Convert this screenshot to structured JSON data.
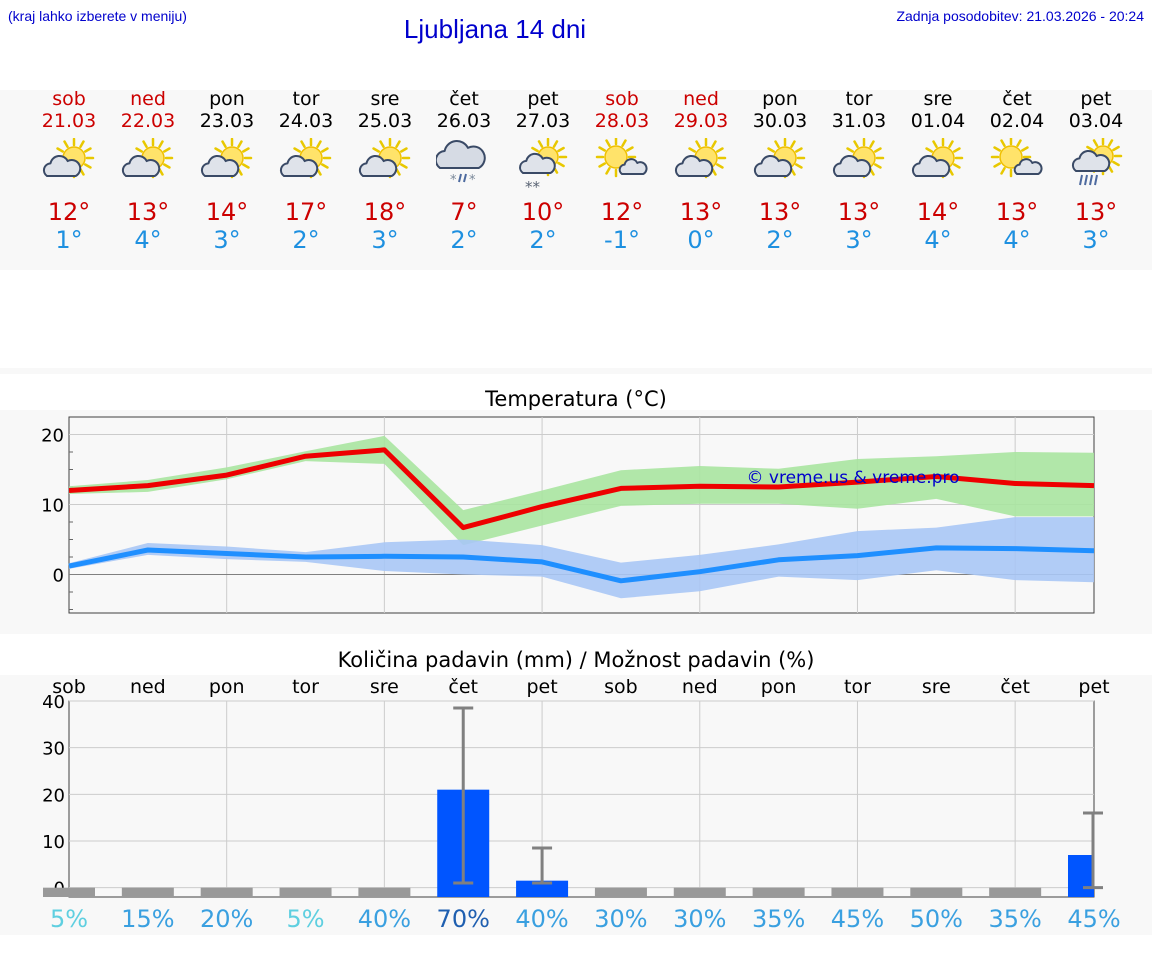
{
  "header": {
    "hint": "(kraj lahko izberete v meniju)",
    "title": "Ljubljana 14 dni",
    "updated": "Zadnja posodobitev: 21.03.2026 - 20:24"
  },
  "days": [
    {
      "name": "sob",
      "date": "21.03",
      "weekend": true,
      "icon": "partly-cloudy-icon",
      "tmax": "12°",
      "tmin": "1°"
    },
    {
      "name": "ned",
      "date": "22.03",
      "weekend": true,
      "icon": "partly-cloudy-icon",
      "tmax": "13°",
      "tmin": "4°"
    },
    {
      "name": "pon",
      "date": "23.03",
      "weekend": false,
      "icon": "partly-cloudy-icon",
      "tmax": "14°",
      "tmin": "3°"
    },
    {
      "name": "tor",
      "date": "24.03",
      "weekend": false,
      "icon": "partly-cloudy-icon",
      "tmax": "17°",
      "tmin": "2°"
    },
    {
      "name": "sre",
      "date": "25.03",
      "weekend": false,
      "icon": "partly-cloudy-icon",
      "tmax": "18°",
      "tmin": "3°"
    },
    {
      "name": "čet",
      "date": "26.03",
      "weekend": false,
      "icon": "cloud-sleet-icon",
      "tmax": "7°",
      "tmin": "2°"
    },
    {
      "name": "pet",
      "date": "27.03",
      "weekend": false,
      "icon": "sun-cloud-snow-icon",
      "tmax": "10°",
      "tmin": "2°"
    },
    {
      "name": "sob",
      "date": "28.03",
      "weekend": true,
      "icon": "mostly-sunny-icon",
      "tmax": "12°",
      "tmin": "-1°"
    },
    {
      "name": "ned",
      "date": "29.03",
      "weekend": true,
      "icon": "partly-cloudy-icon",
      "tmax": "13°",
      "tmin": "0°"
    },
    {
      "name": "pon",
      "date": "30.03",
      "weekend": false,
      "icon": "partly-cloudy-icon",
      "tmax": "13°",
      "tmin": "2°"
    },
    {
      "name": "tor",
      "date": "31.03",
      "weekend": false,
      "icon": "partly-cloudy-icon",
      "tmax": "13°",
      "tmin": "3°"
    },
    {
      "name": "sre",
      "date": "01.04",
      "weekend": false,
      "icon": "partly-cloudy-icon",
      "tmax": "14°",
      "tmin": "4°"
    },
    {
      "name": "čet",
      "date": "02.04",
      "weekend": false,
      "icon": "mostly-sunny-icon",
      "tmax": "13°",
      "tmin": "4°"
    },
    {
      "name": "pet",
      "date": "03.04",
      "weekend": false,
      "icon": "sun-cloud-rain-icon",
      "tmax": "13°",
      "tmin": "3°"
    }
  ],
  "colors": {
    "max": "#cc0000",
    "min": "#1e90e0",
    "line_max": "#ee0000",
    "line_min": "#1f8fff",
    "band_max": "#a8e4a0",
    "band_min": "#a9c6f5",
    "bar": "#0055ff",
    "whisker": "#808080"
  },
  "chart_data": [
    {
      "type": "line",
      "title": "Temperatura (°C)",
      "watermark": "© vreme.us & vreme.pro",
      "ylim": [
        -5.5,
        22.5
      ],
      "yticks": [
        0,
        10,
        20
      ],
      "grid": true,
      "series": [
        {
          "values": [
            12,
            12.7,
            14.2,
            16.9,
            17.8,
            6.7,
            9.7,
            12.3,
            12.6,
            12.5,
            13.2,
            14.0,
            13.0,
            12.7
          ],
          "band_low": [
            11.5,
            11.8,
            13.6,
            16.2,
            15.8,
            4.2,
            7.0,
            9.8,
            10.1,
            10.1,
            9.4,
            10.8,
            8.3,
            8.3
          ],
          "band_high": [
            12.6,
            13.5,
            15.3,
            17.6,
            19.8,
            9.2,
            12.0,
            14.9,
            15.5,
            15.1,
            16.5,
            16.9,
            17.5,
            17.4
          ]
        },
        {
          "values": [
            1.2,
            3.5,
            3.0,
            2.5,
            2.6,
            2.5,
            1.8,
            -0.9,
            0.4,
            2.1,
            2.7,
            3.8,
            3.7,
            3.4
          ],
          "band_low": [
            0.8,
            2.8,
            2.2,
            1.8,
            0.5,
            0.0,
            -0.3,
            -3.4,
            -2.4,
            -0.3,
            -0.8,
            0.6,
            -0.8,
            -1.1
          ],
          "band_high": [
            1.6,
            4.5,
            4.0,
            3.2,
            4.6,
            5.0,
            4.2,
            1.7,
            2.8,
            4.3,
            6.2,
            6.7,
            8.2,
            8.2
          ]
        }
      ]
    },
    {
      "type": "bar",
      "title": "Količina padavin (mm) / Možnost padavin (%)",
      "categories": [
        "sob",
        "ned",
        "pon",
        "tor",
        "sre",
        "čet",
        "pet",
        "sob",
        "ned",
        "pon",
        "tor",
        "sre",
        "čet",
        "pet"
      ],
      "ylim": [
        -2,
        40
      ],
      "yticks": [
        0,
        10,
        20,
        30,
        40
      ],
      "values": [
        0,
        0,
        0,
        0,
        0,
        21,
        1.5,
        0,
        0,
        0,
        0,
        0,
        0,
        7
      ],
      "whisker_low": [
        null,
        null,
        null,
        null,
        null,
        1,
        1,
        null,
        null,
        null,
        null,
        null,
        null,
        null
      ],
      "whisker_high": [
        null,
        null,
        null,
        null,
        null,
        38.5,
        8.5,
        null,
        null,
        null,
        null,
        null,
        null,
        16
      ],
      "probability": [
        "5%",
        "15%",
        "20%",
        "5%",
        "40%",
        "70%",
        "40%",
        "30%",
        "30%",
        "35%",
        "45%",
        "50%",
        "35%",
        "45%"
      ],
      "probability_colors": [
        "#5fcfe0",
        "#3aa0e0",
        "#3aa0e0",
        "#5fcfe0",
        "#3aa0e0",
        "#1f5fb0",
        "#3aa0e0",
        "#3aa0e0",
        "#3aa0e0",
        "#3aa0e0",
        "#3aa0e0",
        "#3aa0e0",
        "#3aa0e0",
        "#3aa0e0"
      ]
    }
  ]
}
